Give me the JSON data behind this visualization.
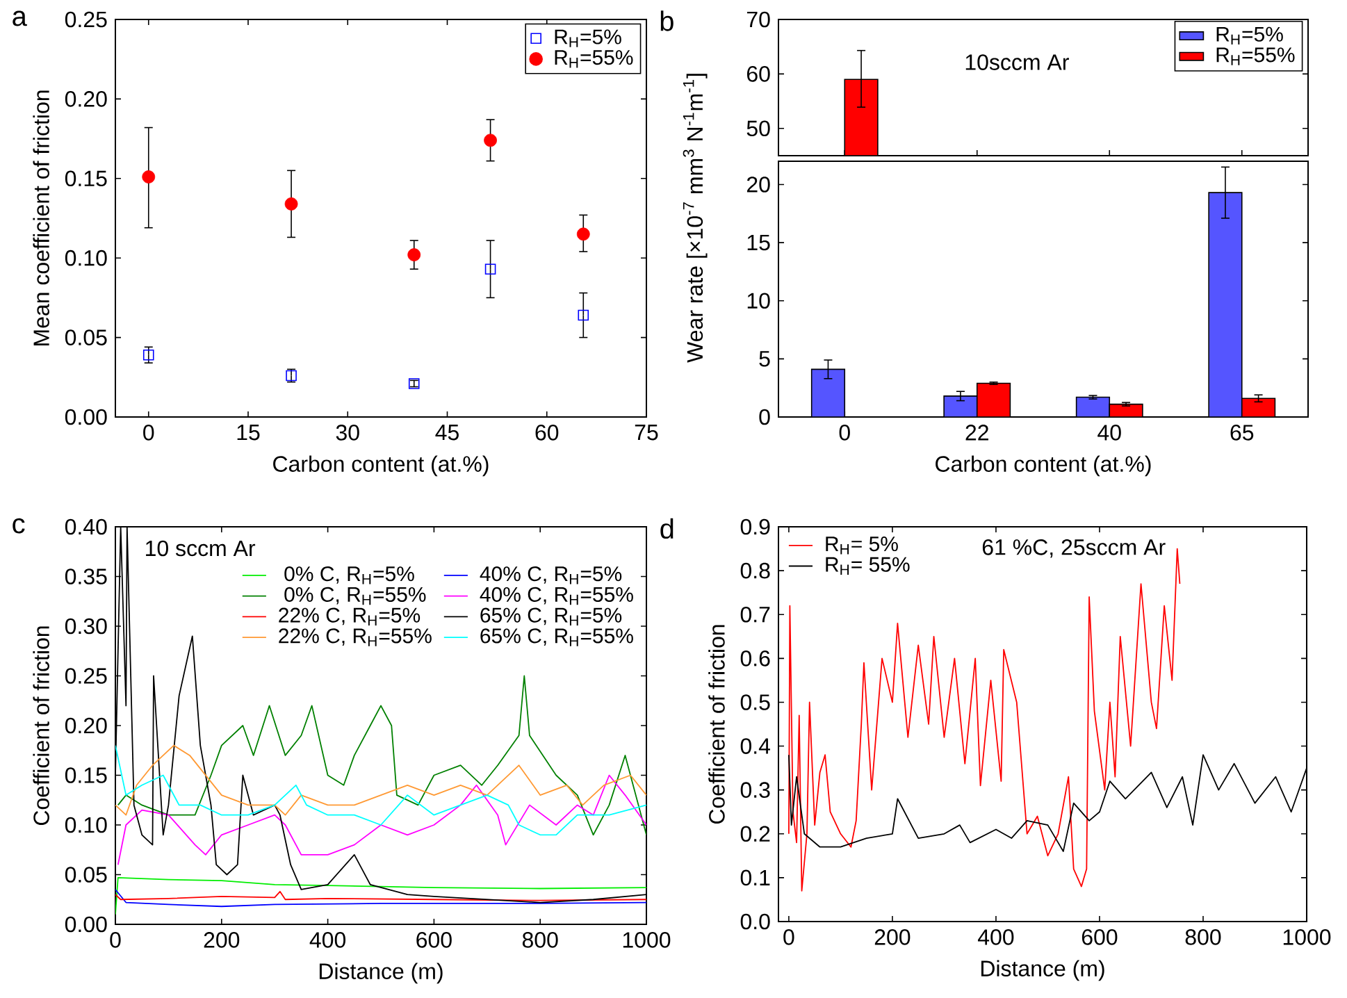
{
  "chart_data": [
    {
      "type": "scatter",
      "title": "a",
      "xlabel": "Carbon content (at.%)",
      "ylabel": "Mean coefficient of friction",
      "x": [
        0,
        21.5,
        40,
        51.5,
        65.5
      ],
      "xlim": [
        -5,
        75
      ],
      "xticks": [
        0,
        15,
        30,
        45,
        60,
        75
      ],
      "ylim": [
        0,
        0.25
      ],
      "yticks": [
        {
          "value": 0,
          "label": "0.00"
        },
        0.05,
        {
          "value": 0.1,
          "label": "0.10"
        },
        0.15,
        {
          "value": 0.2,
          "label": "0.20"
        },
        0.25
      ],
      "legend": "top right",
      "series": [
        {
          "name": "R$_{H}$=5%",
          "color": "#0000ff",
          "marker": "square",
          "values": [
            0.039,
            0.026,
            0.021,
            0.093,
            0.064
          ],
          "errors": [
            0.005,
            0.004,
            0.002,
            0.018,
            0.014
          ]
        },
        {
          "name": "R$_{H}$=55%",
          "color": "#ff0000",
          "marker": "circle",
          "values": [
            0.151,
            0.134,
            0.102,
            0.174,
            0.115
          ],
          "errors": [
            [
              0.119,
              0.182
            ],
            [
              0.113,
              0.155
            ],
            [
              0.093,
              0.111
            ],
            [
              0.161,
              0.187
            ],
            [
              0.104,
              0.127
            ]
          ]
        }
      ]
    },
    {
      "type": "bar",
      "title": "b",
      "annotations": [
        "10sccm Ar"
      ],
      "categories": [
        "0",
        "22",
        "40",
        "65"
      ],
      "ylim": [
        45,
        70
      ],
      "yticks": [
        50,
        60,
        70
      ],
      "tick_labels": "y",
      "legend": "top right",
      "series": [
        {
          "name": "R$_{H}$=5%",
          "color": "#5555ff",
          "values": [
            null,
            null,
            null,
            null
          ]
        },
        {
          "name": "R$_{H}$=55%",
          "color": "#ff0000",
          "values": [
            59,
            null,
            null,
            null
          ],
          "errors": [
            [
              53.9,
              64.3
            ],
            null,
            null,
            null
          ]
        }
      ]
    },
    {
      "type": "bar",
      "xlabel": "Carbon content (at.%)",
      "ylabel": "Wear rate [×10$^{-7}$ mm$^{3}$ N$^{-1}$m$^{-1}$]",
      "categories": [
        "0",
        "22",
        "40",
        "65"
      ],
      "ylim": [
        0,
        22
      ],
      "yticks": [
        0,
        5,
        10,
        15,
        20
      ],
      "series": [
        {
          "color": "#5555ff",
          "values": [
            4.1,
            1.8,
            1.7,
            19.3
          ],
          "errors": [
            0.8,
            0.4,
            0.15,
            2.2
          ]
        },
        {
          "color": "#ff0000",
          "values": [
            null,
            2.9,
            1.1,
            1.6
          ],
          "errors": [
            null,
            0.1,
            0.15,
            0.3
          ]
        }
      ]
    },
    {
      "type": "line",
      "title": "c",
      "annotations": [
        "10 sccm Ar"
      ],
      "xlabel": "Distance (m)",
      "ylabel": "Coefficient of friction",
      "xlim": [
        0,
        1000
      ],
      "xticks": [
        0,
        200,
        400,
        600,
        800,
        1000
      ],
      "ylim": [
        0,
        0.4
      ],
      "yticks": [
        {
          "value": 0,
          "label": "0.00"
        },
        0.05,
        {
          "value": 0.1,
          "label": "0.10"
        },
        0.15,
        {
          "value": 0.2,
          "label": "0.20"
        },
        0.25,
        {
          "value": 0.3,
          "label": "0.30"
        },
        0.35,
        {
          "value": 0.4,
          "label": "0.40"
        }
      ],
      "legend": "top right",
      "series": [
        {
          "name": " 0% C, R$_{H}$=5%",
          "color": "#00ee00",
          "x": [
            0,
            5,
            100,
            200,
            300,
            400,
            500,
            600,
            800,
            1000
          ],
          "values": [
            0.01,
            0.047,
            0.045,
            0.044,
            0.04,
            0.039,
            0.038,
            0.037,
            0.036,
            0.037
          ]
        },
        {
          "name": "40% C, R$_{H}$=5%",
          "color": "#0000ff",
          "x": [
            0,
            20,
            100,
            200,
            300,
            500,
            800,
            1000
          ],
          "values": [
            0.035,
            0.022,
            0.02,
            0.018,
            0.02,
            0.021,
            0.021,
            0.022
          ]
        },
        {
          "name": " 0% C, R$_{H}$=55%",
          "color": "#008000",
          "x": [
            5,
            20,
            50,
            100,
            150,
            180,
            200,
            240,
            260,
            290,
            320,
            350,
            370,
            400,
            430,
            450,
            480,
            500,
            520,
            530,
            570,
            600,
            650,
            690,
            720,
            760,
            770,
            780,
            830,
            870,
            900,
            930,
            960,
            990,
            1000
          ],
          "values": [
            0.12,
            0.13,
            0.12,
            0.11,
            0.11,
            0.15,
            0.18,
            0.2,
            0.17,
            0.22,
            0.17,
            0.19,
            0.22,
            0.15,
            0.14,
            0.17,
            0.2,
            0.22,
            0.2,
            0.13,
            0.12,
            0.15,
            0.16,
            0.14,
            0.16,
            0.19,
            0.25,
            0.19,
            0.15,
            0.13,
            0.09,
            0.12,
            0.17,
            0.11,
            0.09
          ]
        },
        {
          "name": "40% C, R$_{H}$=55%",
          "color": "#ff00ff",
          "x": [
            5,
            20,
            50,
            100,
            150,
            170,
            200,
            250,
            300,
            320,
            350,
            400,
            450,
            500,
            550,
            600,
            650,
            680,
            720,
            735,
            780,
            830,
            870,
            900,
            930,
            960,
            1000
          ],
          "values": [
            0.06,
            0.1,
            0.115,
            0.11,
            0.08,
            0.07,
            0.09,
            0.1,
            0.11,
            0.1,
            0.07,
            0.07,
            0.08,
            0.1,
            0.09,
            0.1,
            0.12,
            0.14,
            0.11,
            0.08,
            0.12,
            0.1,
            0.12,
            0.11,
            0.15,
            0.13,
            0.1
          ]
        },
        {
          "name": "22% C, R$_{H}$=5%",
          "color": "#ff0000",
          "x": [
            0,
            10,
            100,
            200,
            300,
            310,
            320,
            400,
            600,
            800,
            1000
          ],
          "values": [
            0.03,
            0.025,
            0.026,
            0.028,
            0.027,
            0.033,
            0.025,
            0.026,
            0.025,
            0.024,
            0.025
          ]
        },
        {
          "name": "65% C, R$_{H}$=5%",
          "color": "#000000",
          "x": [
            0,
            10,
            20,
            22,
            35,
            50,
            70,
            72,
            90,
            100,
            120,
            145,
            160,
            180,
            190,
            210,
            230,
            240,
            260,
            300,
            310,
            330,
            350,
            400,
            450,
            480,
            550,
            600,
            700,
            800,
            900,
            1000
          ],
          "values": [
            0.15,
            0.4,
            0.22,
            0.4,
            0.12,
            0.09,
            0.08,
            0.25,
            0.09,
            0.12,
            0.23,
            0.29,
            0.18,
            0.12,
            0.06,
            0.05,
            0.06,
            0.15,
            0.11,
            0.12,
            0.11,
            0.06,
            0.035,
            0.04,
            0.07,
            0.04,
            0.03,
            0.028,
            0.025,
            0.022,
            0.025,
            0.03
          ]
        },
        {
          "name": "22% C, R$_{H}$=55%",
          "color": "#ff9933",
          "x": [
            0,
            20,
            40,
            70,
            110,
            140,
            170,
            200,
            250,
            300,
            320,
            350,
            400,
            450,
            500,
            550,
            600,
            650,
            700,
            760,
            800,
            850,
            880,
            920,
            970,
            1000
          ],
          "values": [
            0.12,
            0.11,
            0.14,
            0.16,
            0.18,
            0.17,
            0.15,
            0.13,
            0.12,
            0.12,
            0.11,
            0.13,
            0.12,
            0.12,
            0.13,
            0.14,
            0.13,
            0.14,
            0.13,
            0.16,
            0.13,
            0.14,
            0.12,
            0.14,
            0.15,
            0.13
          ]
        },
        {
          "name": "65% C, R$_{H}$=55%",
          "color": "#00ffff",
          "x": [
            0,
            20,
            50,
            90,
            120,
            160,
            200,
            250,
            300,
            340,
            360,
            400,
            450,
            500,
            550,
            600,
            650,
            700,
            740,
            760,
            800,
            830,
            870,
            930,
            1000
          ],
          "values": [
            0.18,
            0.13,
            0.14,
            0.15,
            0.12,
            0.12,
            0.11,
            0.11,
            0.12,
            0.14,
            0.12,
            0.11,
            0.11,
            0.1,
            0.13,
            0.11,
            0.12,
            0.13,
            0.12,
            0.1,
            0.09,
            0.09,
            0.11,
            0.11,
            0.12
          ]
        }
      ]
    },
    {
      "type": "line",
      "title": "d",
      "annotations": [
        "61 %C, 25sccm Ar"
      ],
      "xlabel": "Distance (m)",
      "ylabel": "Coefficient of friction",
      "xlim": [
        -20,
        1000
      ],
      "xticks": [
        0,
        200,
        400,
        600,
        800,
        1000
      ],
      "ylim": [
        0,
        0.9
      ],
      "yticks": [
        {
          "value": 0,
          "label": "0.0"
        },
        0.1,
        0.2,
        0.3,
        0.4,
        0.5,
        0.6,
        0.7,
        0.8,
        0.9
      ],
      "legend": "top left",
      "series": [
        {
          "name": "R$_{H}$= 5%",
          "color": "#ff0000",
          "x": [
            0,
            2,
            8,
            15,
            20,
            25,
            35,
            40,
            50,
            60,
            70,
            80,
            100,
            120,
            130,
            140,
            145,
            160,
            180,
            200,
            210,
            230,
            250,
            270,
            280,
            300,
            320,
            340,
            360,
            370,
            390,
            410,
            415,
            440,
            460,
            480,
            500,
            520,
            540,
            550,
            565,
            575,
            580,
            590,
            610,
            620,
            630,
            640,
            660,
            680,
            700,
            710,
            725,
            740,
            750,
            755
          ],
          "values": [
            0.2,
            0.72,
            0.25,
            0.18,
            0.47,
            0.07,
            0.2,
            0.5,
            0.22,
            0.34,
            0.38,
            0.25,
            0.2,
            0.17,
            0.23,
            0.45,
            0.59,
            0.3,
            0.6,
            0.5,
            0.68,
            0.42,
            0.63,
            0.45,
            0.65,
            0.42,
            0.6,
            0.36,
            0.6,
            0.31,
            0.55,
            0.32,
            0.62,
            0.5,
            0.2,
            0.24,
            0.15,
            0.2,
            0.33,
            0.12,
            0.08,
            0.12,
            0.74,
            0.48,
            0.3,
            0.5,
            0.33,
            0.65,
            0.4,
            0.77,
            0.5,
            0.44,
            0.72,
            0.55,
            0.85,
            0.77
          ]
        },
        {
          "name": "R$_{H}$= 55%",
          "color": "#000000",
          "x": [
            0,
            5,
            15,
            30,
            60,
            100,
            150,
            200,
            210,
            250,
            300,
            330,
            350,
            400,
            430,
            460,
            500,
            530,
            550,
            580,
            600,
            620,
            650,
            700,
            730,
            760,
            780,
            800,
            830,
            860,
            900,
            940,
            970,
            1000
          ],
          "values": [
            0.38,
            0.22,
            0.33,
            0.2,
            0.17,
            0.17,
            0.19,
            0.2,
            0.28,
            0.19,
            0.2,
            0.22,
            0.18,
            0.21,
            0.19,
            0.23,
            0.22,
            0.16,
            0.27,
            0.23,
            0.25,
            0.32,
            0.28,
            0.34,
            0.26,
            0.33,
            0.22,
            0.38,
            0.3,
            0.36,
            0.27,
            0.33,
            0.25,
            0.35
          ]
        }
      ]
    }
  ]
}
